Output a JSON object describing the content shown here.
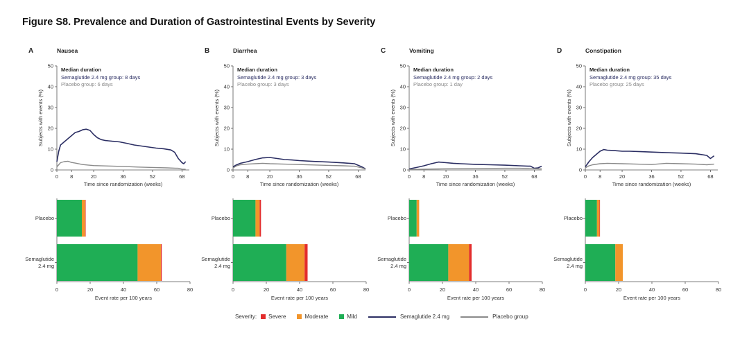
{
  "figure": {
    "title": "Figure S8. Prevalence and Duration of Gastrointestinal Events by Severity"
  },
  "colors": {
    "semaglutide_line": "#2b2e63",
    "placebo_line": "#8a8a8a",
    "severe": "#e32d2d",
    "moderate": "#f2952b",
    "mild": "#1fae55"
  },
  "legend": {
    "severity_label": "Severity:",
    "severe": "Severe",
    "moderate": "Moderate",
    "mild": "Mild",
    "semaglutide": "Semaglutide 2.4 mg",
    "placebo": "Placebo group"
  },
  "chart_data": [
    {
      "panel_letter": "A",
      "title": "Nausea",
      "median_title": "Median duration",
      "median_sema": "Semaglutide 2.4 mg group: 8 days",
      "median_placebo": "Placebo group: 6 days",
      "line": {
        "type": "line",
        "xlabel": "Time since randomization (weeks)",
        "ylabel": "Subjects with events (%)",
        "xlim": [
          0,
          72
        ],
        "ylim": [
          0,
          50
        ],
        "xticks": [
          0,
          8,
          20,
          36,
          52,
          68
        ],
        "yticks": [
          0,
          10,
          20,
          30,
          40,
          50
        ],
        "series": [
          {
            "name": "Semaglutide 2.4 mg",
            "color": "#2b2e63",
            "x": [
              0,
              1,
              2,
              4,
              6,
              8,
              10,
              12,
              14,
              16,
              18,
              20,
              22,
              24,
              26,
              28,
              30,
              34,
              38,
              42,
              46,
              50,
              54,
              58,
              62,
              64,
              66,
              68,
              69,
              70
            ],
            "y": [
              4,
              9,
              12,
              13.5,
              15,
              16.5,
              18,
              18.5,
              19.3,
              19.6,
              19,
              17,
              15.5,
              14.6,
              14.2,
              14,
              13.8,
              13.5,
              12.8,
              12,
              11.5,
              11,
              10.5,
              10.2,
              9.6,
              8.5,
              5.5,
              3.5,
              3,
              4
            ]
          },
          {
            "name": "Placebo group",
            "color": "#8a8a8a",
            "x": [
              0,
              2,
              4,
              6,
              8,
              10,
              14,
              20,
              28,
              36,
              44,
              52,
              60,
              66,
              68,
              70
            ],
            "y": [
              1.5,
              3.5,
              4,
              4.2,
              3.6,
              3.3,
              2.6,
              2.1,
              1.9,
              1.7,
              1.4,
              1.2,
              1.0,
              0.8,
              0.4,
              0.3
            ]
          }
        ]
      },
      "bar": {
        "type": "bar",
        "xlabel": "Event rate per 100 years",
        "xlim": [
          0,
          80
        ],
        "xticks": [
          0,
          20,
          40,
          60,
          80
        ],
        "categories": [
          "Placebo",
          "Semaglutide 2.4 mg"
        ],
        "category_lines": [
          [
            "Placebo"
          ],
          [
            "Semaglutide",
            "2.4 mg"
          ]
        ],
        "series": [
          {
            "name": "Mild",
            "values": [
              15.0,
              48.5
            ]
          },
          {
            "name": "Moderate",
            "values": [
              2.0,
              14.0
            ]
          },
          {
            "name": "Severe",
            "values": [
              0.3,
              0.5
            ]
          }
        ]
      }
    },
    {
      "panel_letter": "B",
      "title": "Diarrhea",
      "median_title": "Median duration",
      "median_sema": "Semaglutide 2.4 mg group: 3 days",
      "median_placebo": "Placebo group: 3 days",
      "line": {
        "type": "line",
        "xlabel": "Time since randomization (weeks)",
        "ylabel": "Subjects with events (%)",
        "xlim": [
          0,
          72
        ],
        "ylim": [
          0,
          50
        ],
        "xticks": [
          0,
          8,
          20,
          36,
          52,
          68
        ],
        "yticks": [
          0,
          10,
          20,
          30,
          40,
          50
        ],
        "series": [
          {
            "name": "Semaglutide 2.4 mg",
            "color": "#2b2e63",
            "x": [
              0,
              2,
              4,
              8,
              12,
              16,
              20,
              24,
              28,
              32,
              36,
              44,
              52,
              60,
              66,
              70,
              72
            ],
            "y": [
              1.5,
              2.5,
              3.2,
              4,
              5,
              5.8,
              6,
              5.5,
              5,
              4.8,
              4.5,
              4.1,
              3.8,
              3.4,
              3,
              1.5,
              0.5
            ]
          },
          {
            "name": "Placebo group",
            "color": "#8a8a8a",
            "x": [
              0,
              2,
              4,
              8,
              12,
              16,
              20,
              28,
              36,
              44,
              52,
              60,
              66,
              70,
              72
            ],
            "y": [
              1,
              2,
              2.5,
              2.8,
              3,
              3.2,
              3,
              2.8,
              2.6,
              2.4,
              2.2,
              2,
              1.8,
              1,
              0.4
            ]
          }
        ]
      },
      "bar": {
        "type": "bar",
        "xlabel": "Event rate per 100 years",
        "xlim": [
          0,
          80
        ],
        "xticks": [
          0,
          20,
          40,
          60,
          80
        ],
        "categories": [
          "Placebo",
          "Semaglutide 2.4 mg"
        ],
        "category_lines": [
          [
            "Placebo"
          ],
          [
            "Semaglutide",
            "2.4 mg"
          ]
        ],
        "series": [
          {
            "name": "Mild",
            "values": [
              13.5,
              32.0
            ]
          },
          {
            "name": "Moderate",
            "values": [
              2.5,
              11.0
            ]
          },
          {
            "name": "Severe",
            "values": [
              0.8,
              1.8
            ]
          }
        ]
      }
    },
    {
      "panel_letter": "C",
      "title": "Vomiting",
      "median_title": "Median duration",
      "median_sema": "Semaglutide 2.4 mg group: 2 days",
      "median_placebo": "Placebo group: 1 day",
      "line": {
        "type": "line",
        "xlabel": "Time since randomization (weeks)",
        "ylabel": "Subjects with events (%)",
        "xlim": [
          0,
          72
        ],
        "ylim": [
          0,
          50
        ],
        "xticks": [
          0,
          8,
          20,
          36,
          52,
          68
        ],
        "yticks": [
          0,
          10,
          20,
          30,
          40,
          50
        ],
        "series": [
          {
            "name": "Semaglutide 2.4 mg",
            "color": "#2b2e63",
            "x": [
              0,
              4,
              8,
              12,
              16,
              20,
              24,
              28,
              36,
              44,
              52,
              60,
              66,
              68,
              70,
              72
            ],
            "y": [
              0.5,
              1.2,
              2,
              3,
              3.8,
              3.5,
              3.2,
              3,
              2.7,
              2.5,
              2.3,
              2,
              1.8,
              0.8,
              1,
              1.8
            ]
          },
          {
            "name": "Placebo group",
            "color": "#8a8a8a",
            "x": [
              0,
              8,
              16,
              24,
              36,
              52,
              60,
              68,
              72
            ],
            "y": [
              0.2,
              0.4,
              0.5,
              0.6,
              0.7,
              0.8,
              0.8,
              0.6,
              0.5
            ]
          }
        ]
      },
      "bar": {
        "type": "bar",
        "xlabel": "Event rate per 100 years",
        "xlim": [
          0,
          80
        ],
        "xticks": [
          0,
          20,
          40,
          60,
          80
        ],
        "categories": [
          "Placebo",
          "Semaglutide 2.4 mg"
        ],
        "category_lines": [
          [
            "Placebo"
          ],
          [
            "Semaglutide",
            "2.4 mg"
          ]
        ],
        "series": [
          {
            "name": "Mild",
            "values": [
              4.5,
              23.5
            ]
          },
          {
            "name": "Moderate",
            "values": [
              1.5,
              12.5
            ]
          },
          {
            "name": "Severe",
            "values": [
              0.0,
              1.5
            ]
          }
        ]
      }
    },
    {
      "panel_letter": "D",
      "title": "Constipation",
      "median_title": "Median duration",
      "median_sema": "Semaglutide 2.4 mg group: 35 days",
      "median_placebo": "Placebo group: 25 days",
      "line": {
        "type": "line",
        "xlabel": "Time since randomization (weeks)",
        "ylabel": "Subjects with events (%)",
        "xlim": [
          0,
          72
        ],
        "ylim": [
          0,
          50
        ],
        "xticks": [
          0,
          8,
          20,
          36,
          52,
          68
        ],
        "yticks": [
          0,
          10,
          20,
          30,
          40,
          50
        ],
        "series": [
          {
            "name": "Semaglutide 2.4 mg",
            "color": "#2b2e63",
            "x": [
              0,
              2,
              4,
              6,
              8,
              10,
              12,
              16,
              20,
              24,
              30,
              36,
              44,
              52,
              60,
              66,
              68,
              70
            ],
            "y": [
              1.5,
              4,
              6,
              7.5,
              9,
              9.8,
              9.5,
              9.3,
              9,
              9,
              8.8,
              8.6,
              8.3,
              8.1,
              7.8,
              7,
              5.5,
              6.8
            ]
          },
          {
            "name": "Placebo group",
            "color": "#8a8a8a",
            "x": [
              0,
              2,
              4,
              8,
              12,
              20,
              28,
              36,
              44,
              52,
              60,
              66,
              70
            ],
            "y": [
              1,
              2,
              2.5,
              3,
              3.2,
              3,
              2.8,
              2.6,
              3.2,
              3,
              2.8,
              2.5,
              2.8
            ]
          }
        ]
      },
      "bar": {
        "type": "bar",
        "xlabel": "Event rate per 100 years",
        "xlim": [
          0,
          80
        ],
        "xticks": [
          0,
          20,
          40,
          60,
          80
        ],
        "categories": [
          "Placebo",
          "Semaglutide 2.4 mg"
        ],
        "category_lines": [
          [
            "Placebo"
          ],
          [
            "Semaglutide",
            "2.4 mg"
          ]
        ],
        "series": [
          {
            "name": "Mild",
            "values": [
              7.0,
              18.0
            ]
          },
          {
            "name": "Moderate",
            "values": [
              1.5,
              4.5
            ]
          },
          {
            "name": "Severe",
            "values": [
              0.3,
              0.0
            ]
          }
        ]
      }
    }
  ]
}
